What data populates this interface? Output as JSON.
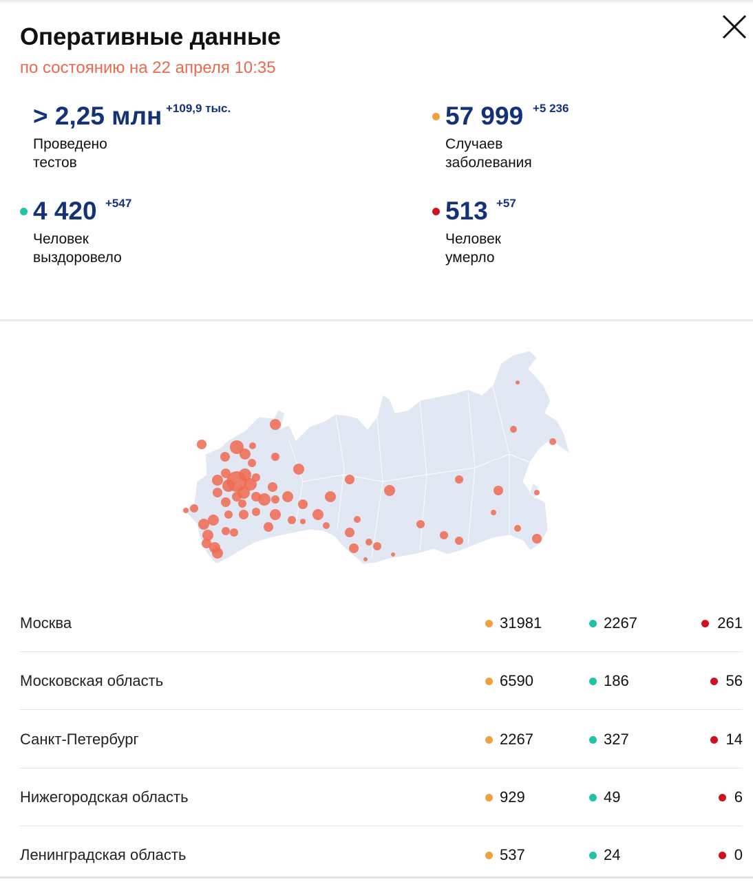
{
  "header": {
    "title": "Оперативные данные",
    "subtitle": "по состоянию на 22 апреля 10:35",
    "close_icon": "close-icon"
  },
  "stats": {
    "tests": {
      "value": "> 2,25 млн",
      "delta": "+109,9 тыс.",
      "label": "Проведено\nтестов"
    },
    "cases": {
      "value": "57 999",
      "delta": "+5 236",
      "label": "Случаев\nзаболевания",
      "color": "#f0a03c"
    },
    "recovered": {
      "value": "4 420",
      "delta": "+547",
      "label": "Человек\nвыздоровело",
      "color": "#1fc3a7"
    },
    "deaths": {
      "value": "513",
      "delta": "+57",
      "label": "Человек\nумерло",
      "color": "#d0121f"
    }
  },
  "map": {
    "land_color": "#e2e7f4",
    "marker_color": "#ee6a4f"
  },
  "regions": [
    {
      "name": "Москва",
      "cases": "31981",
      "recovered": "2267",
      "deaths": "261"
    },
    {
      "name": "Московская область",
      "cases": "6590",
      "recovered": "186",
      "deaths": "56"
    },
    {
      "name": "Санкт-Петербург",
      "cases": "2267",
      "recovered": "327",
      "deaths": "14"
    },
    {
      "name": "Нижегородская область",
      "cases": "929",
      "recovered": "49",
      "deaths": "6"
    },
    {
      "name": "Ленинградская область",
      "cases": "537",
      "recovered": "24",
      "deaths": "0"
    }
  ]
}
